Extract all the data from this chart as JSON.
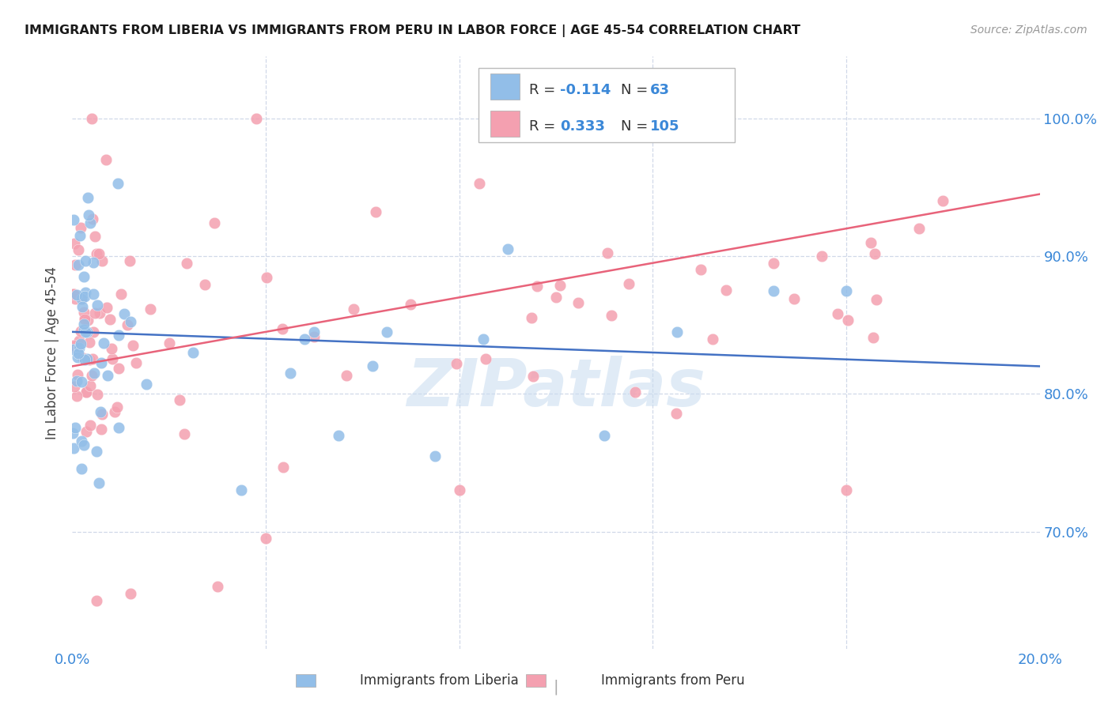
{
  "title": "IMMIGRANTS FROM LIBERIA VS IMMIGRANTS FROM PERU IN LABOR FORCE | AGE 45-54 CORRELATION CHART",
  "source": "Source: ZipAtlas.com",
  "ylabel": "In Labor Force | Age 45-54",
  "xlim": [
    0.0,
    0.2
  ],
  "ylim": [
    0.615,
    1.045
  ],
  "yticks": [
    0.7,
    0.8,
    0.9,
    1.0
  ],
  "ytick_labels": [
    "70.0%",
    "80.0%",
    "90.0%",
    "100.0%"
  ],
  "blue_R": -0.114,
  "blue_N": 63,
  "pink_R": 0.333,
  "pink_N": 105,
  "blue_color": "#92BEE8",
  "pink_color": "#F4A0B0",
  "trend_blue_color": "#4472C4",
  "trend_pink_color": "#E8637A",
  "axis_color": "#3B88D8",
  "grid_color": "#D0D8E8",
  "watermark": "ZIPatlas",
  "blue_trend_y0": 0.845,
  "blue_trend_y1": 0.82,
  "pink_trend_y0": 0.82,
  "pink_trend_y1": 0.945
}
